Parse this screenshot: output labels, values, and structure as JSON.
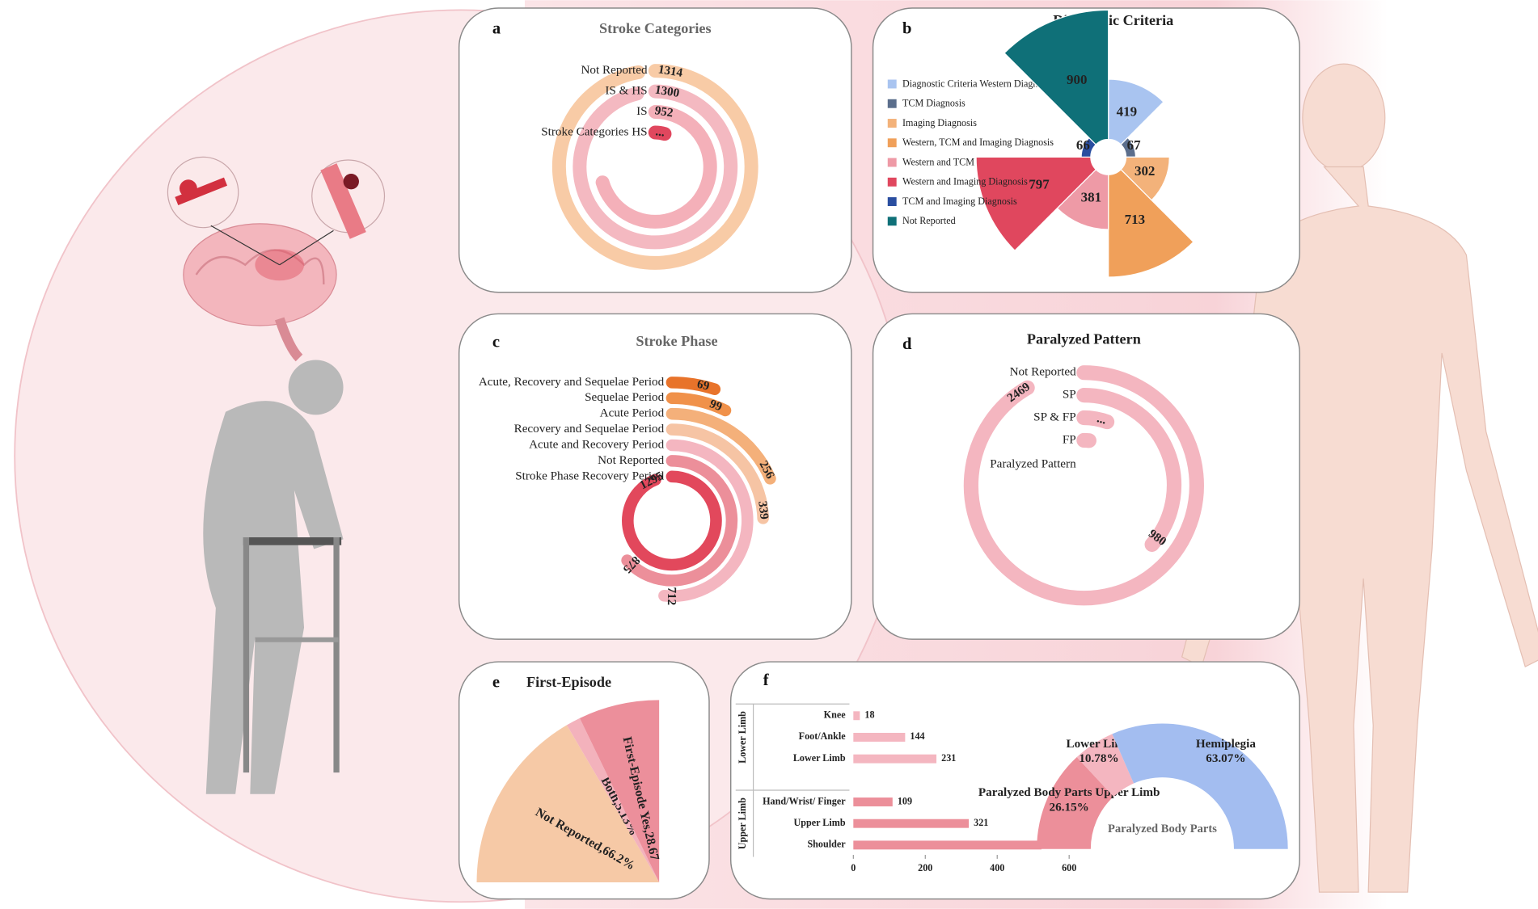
{
  "panel_labels": [
    "a",
    "b",
    "c",
    "d",
    "e",
    "f"
  ],
  "chart_data": [
    {
      "type": "radial_bar",
      "title": "Stroke Categories",
      "categories": [
        "Not Reported",
        "IS & HS",
        "IS",
        "Stroke Categories HS"
      ],
      "values": [
        1314,
        1300,
        952,
        60
      ],
      "value_labels": [
        "1314",
        "1300",
        "952",
        "..."
      ],
      "colors": [
        "#f8cba6",
        "#f4b9c1",
        "#f4b0b9",
        "#e0475e"
      ]
    },
    {
      "type": "rose",
      "title": "Diagnostic Criteria",
      "categories": [
        "Diagnostic Criteria Western Diagnosis",
        "TCM Diagnosis",
        "Imaging Diagnosis",
        "Western, TCM and Imaging Diagnosis",
        "Western and TCM Diagnosis",
        "Western and Imaging Diagnosis",
        "TCM and Imaging Diagnosis",
        "Not Reported"
      ],
      "values": [
        419,
        67,
        302,
        713,
        381,
        797,
        66,
        900
      ],
      "colors": [
        "#a9c4f0",
        "#5b6e8c",
        "#f3b27a",
        "#f0a05a",
        "#ee9aa6",
        "#e0475e",
        "#2a4ea0",
        "#0f7078"
      ]
    },
    {
      "type": "radial_bar",
      "title": "Stroke Phase",
      "categories": [
        "Acute, Recovery and Sequelae Period",
        "Sequelae Period",
        "Acute Period",
        "Recovery and Sequelae Period",
        "Acute and Recovery Period",
        "Not Reported",
        "Stroke Phase Recovery Period"
      ],
      "values": [
        69,
        99,
        256,
        339,
        712,
        875,
        1295
      ],
      "value_labels": [
        "69",
        "99",
        "256",
        "339",
        "712",
        "875",
        "1295"
      ],
      "colors": [
        "#e8732a",
        "#f0914a",
        "#f4b07a",
        "#f6c4a4",
        "#f4b6c0",
        "#ec8f9a",
        "#e2485c"
      ]
    },
    {
      "type": "radial_bar",
      "title": "Paralyzed Pattern",
      "categories": [
        "Not Reported",
        "SP",
        "SP & FP",
        "FP"
      ],
      "axis_label": "Paralyzed Pattern",
      "values": [
        2469,
        980,
        150,
        50
      ],
      "value_labels": [
        "2469",
        "980",
        "...",
        null
      ],
      "colors": [
        "#f4b6c0",
        "#f4b6c0",
        "#f4b6c0",
        "#f4b6c0"
      ]
    },
    {
      "type": "quarter_pie",
      "title": "First-Episode",
      "values": [
        66.2,
        5.13,
        28.67
      ],
      "value_labels": [
        "Not Reported,66.2%",
        "Both,5.13%",
        "First-Episode Yes,28.67"
      ],
      "colors": [
        "#f6c9a6",
        "#f3b2bc",
        "#ec8f9b"
      ]
    },
    {
      "type": "hbar",
      "groups": [
        "Lower Limb",
        "Upper Limb"
      ],
      "group_of": [
        0,
        0,
        0,
        1,
        1,
        1
      ],
      "categories": [
        "Knee",
        "Foot/Ankle",
        "Lower Limb",
        "Hand/Wrist/ Finger",
        "Upper Limb",
        "Shoulder"
      ],
      "values": [
        18,
        144,
        231,
        109,
        321,
        523
      ],
      "group_colors": [
        "#f4b6c0",
        "#ec8f9a"
      ],
      "xlim": [
        0,
        600
      ],
      "xticks": [
        0,
        200,
        400,
        600
      ]
    },
    {
      "type": "half_donut",
      "center_label": "Paralyzed Body Parts",
      "categories": [
        "Paralyzed Body Parts Upper Limb",
        "Lower Limb",
        "Hemiplegia"
      ],
      "values": [
        26.15,
        10.78,
        63.07
      ],
      "value_labels": [
        "26.15%",
        "10.78%",
        "63.07%"
      ],
      "colors": [
        "#ec8f9a",
        "#f4b6c0",
        "#a3bdf0"
      ]
    }
  ]
}
